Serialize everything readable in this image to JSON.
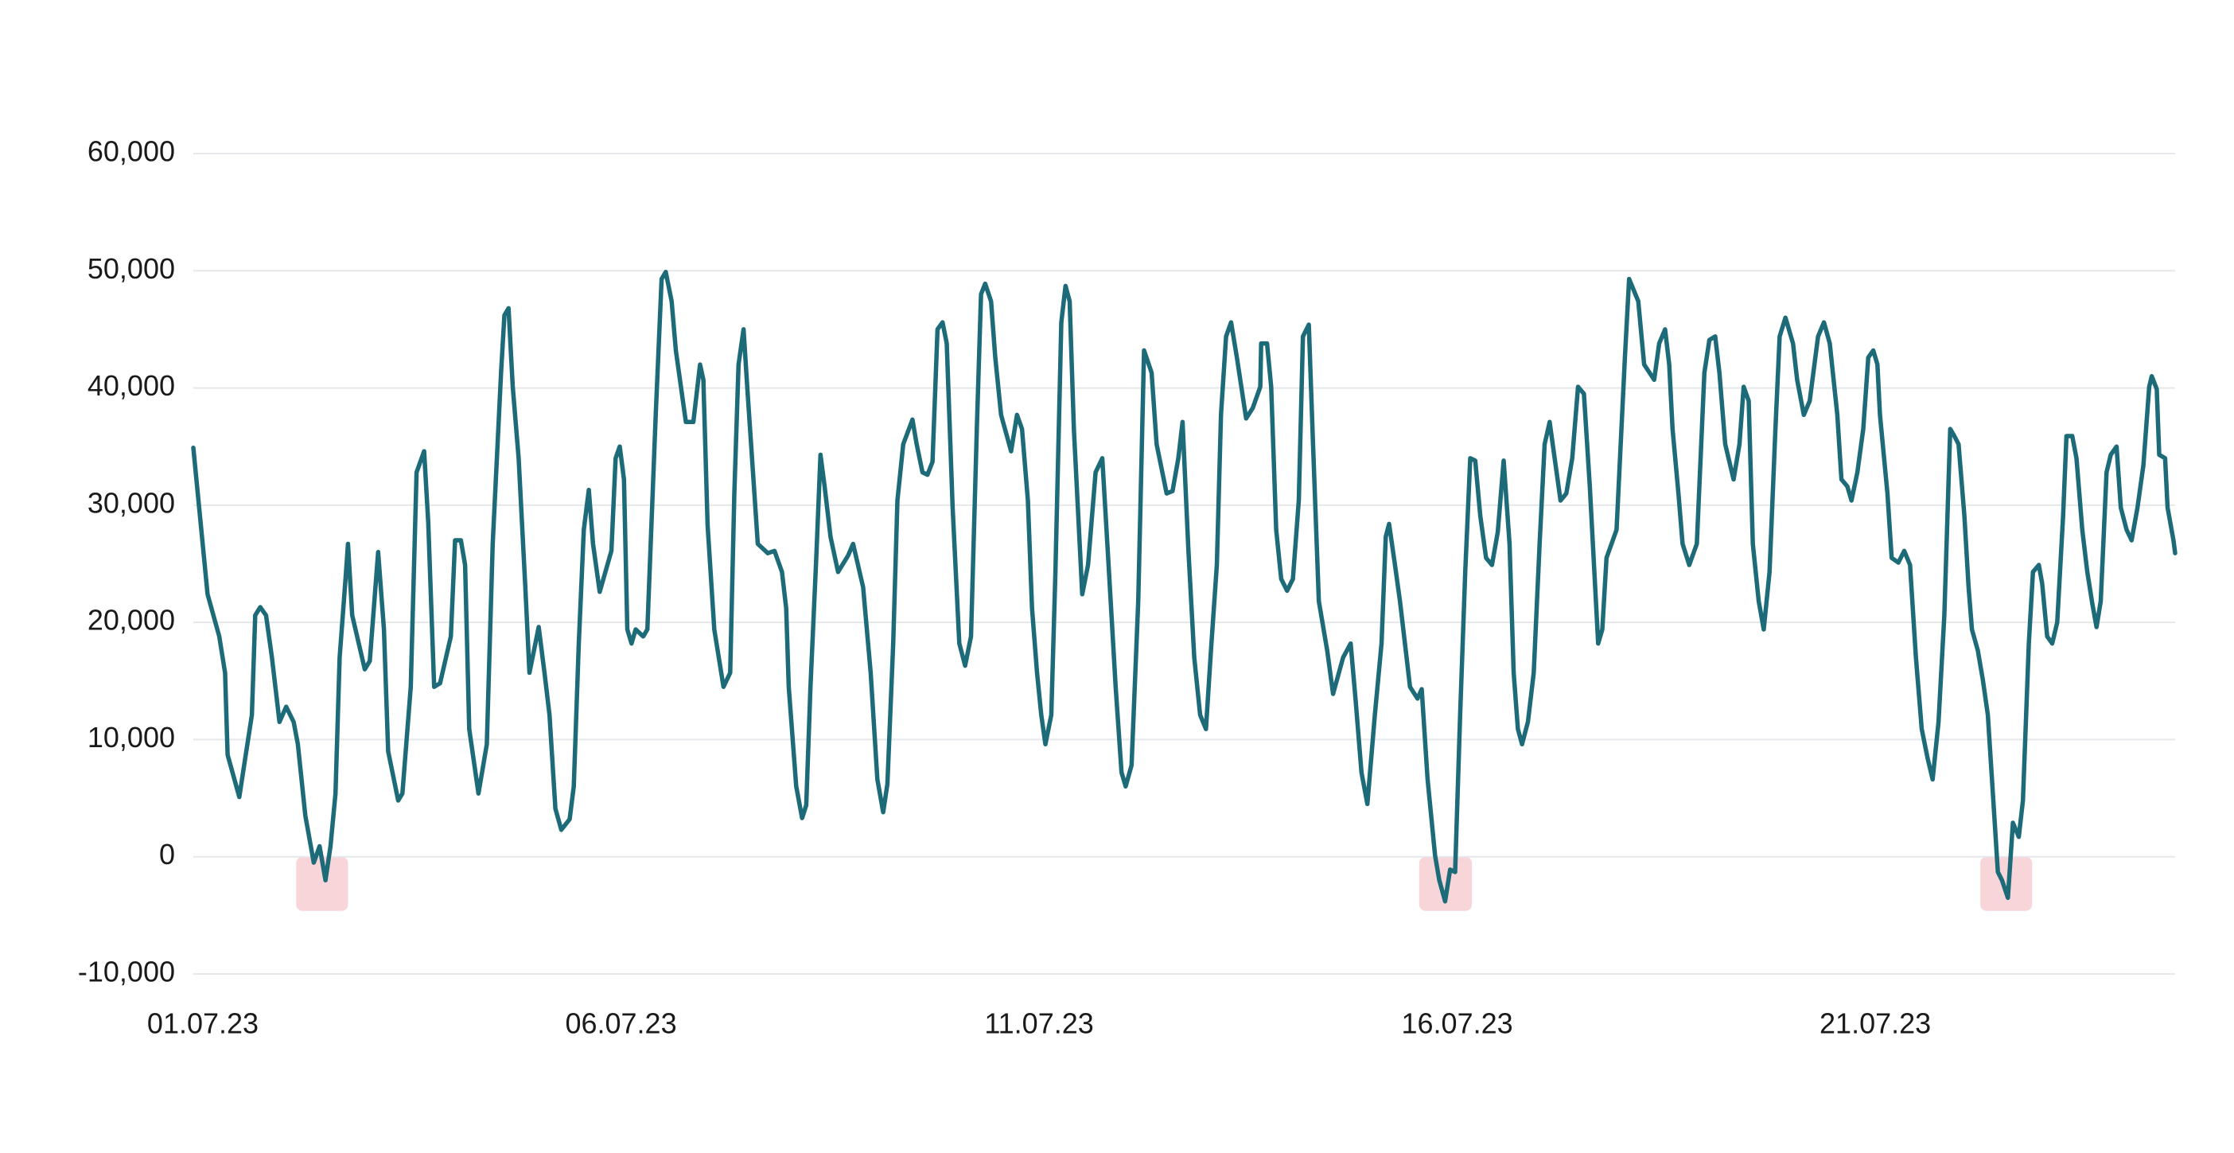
{
  "chart_data": {
    "type": "line",
    "color": "#1d6b78",
    "grid": true,
    "highlight_color": "#f8d5d8",
    "xlim": [
      0,
      23.7
    ],
    "xticks": [
      {
        "value": 0,
        "label": "01.07.23"
      },
      {
        "value": 5,
        "label": "06.07.23"
      },
      {
        "value": 10,
        "label": "11.07.23"
      },
      {
        "value": 15,
        "label": "16.07.23"
      },
      {
        "value": 20,
        "label": "21.07.23"
      }
    ],
    "ylim": [
      -10000,
      60000
    ],
    "yticks": [
      {
        "value": -10000,
        "label": "-10,000"
      },
      0,
      {
        "value": 10000,
        "label": "10,000"
      },
      {
        "value": 20000,
        "label": "20,000"
      },
      {
        "value": 30000,
        "label": "30,000"
      },
      {
        "value": 40000,
        "label": "40,000"
      },
      {
        "value": 50000,
        "label": "50,000"
      },
      {
        "value": 60000,
        "label": "60,000"
      }
    ],
    "highlights": [
      [
        1.23,
        1.85
      ],
      [
        14.66,
        15.29
      ],
      [
        21.37,
        21.99
      ]
    ],
    "x": [
      0,
      0.17,
      0.31,
      0.38,
      0.41,
      0.55,
      0.62,
      0.7,
      0.74,
      0.8,
      0.87,
      0.94,
      1.03,
      1.11,
      1.2,
      1.25,
      1.34,
      1.44,
      1.51,
      1.58,
      1.64,
      1.7,
      1.75,
      1.82,
      1.85,
      1.9,
      2.05,
      2.11,
      2.21,
      2.28,
      2.33,
      2.45,
      2.5,
      2.6,
      2.67,
      2.76,
      2.81,
      2.88,
      2.95,
      3.08,
      3.13,
      3.2,
      3.25,
      3.3,
      3.41,
      3.51,
      3.58,
      3.68,
      3.72,
      3.77,
      3.82,
      3.89,
      3.97,
      4.02,
      4.13,
      4.2,
      4.26,
      4.33,
      4.4,
      4.5,
      4.55,
      4.61,
      4.67,
      4.73,
      4.78,
      4.86,
      5.0,
      5.05,
      5.1,
      5.15,
      5.19,
      5.24,
      5.29,
      5.38,
      5.43,
      5.53,
      5.6,
      5.65,
      5.72,
      5.77,
      5.89,
      5.98,
      6.06,
      6.1,
      6.15,
      6.23,
      6.34,
      6.42,
      6.47,
      6.52,
      6.58,
      6.63,
      6.75,
      6.87,
      6.95,
      7.04,
      7.09,
      7.12,
      7.21,
      7.28,
      7.33,
      7.38,
      7.45,
      7.5,
      7.55,
      7.62,
      7.71,
      7.83,
      7.89,
      8.01,
      8.1,
      8.18,
      8.25,
      8.3,
      8.37,
      8.42,
      8.49,
      8.6,
      8.65,
      8.72,
      8.78,
      8.84,
      8.9,
      8.96,
      9.01,
      9.08,
      9.16,
      9.23,
      9.3,
      9.37,
      9.42,
      9.47,
      9.54,
      9.59,
      9.66,
      9.78,
      9.85,
      9.91,
      9.98,
      10.03,
      10.09,
      10.14,
      10.19,
      10.26,
      10.31,
      10.38,
      10.43,
      10.48,
      10.53,
      10.6,
      10.63,
      10.7,
      10.79,
      10.87,
      10.94,
      11.03,
      11.1,
      11.15,
      11.22,
      11.3,
      11.37,
      11.46,
      11.52,
      11.64,
      11.71,
      11.78,
      11.83,
      11.9,
      11.97,
      12.04,
      12.11,
      12.17,
      12.24,
      12.29,
      12.35,
      12.41,
      12.48,
      12.59,
      12.67,
      12.76,
      12.77,
      12.84,
      12.89,
      12.95,
      13.01,
      13.08,
      13.15,
      13.22,
      13.27,
      13.34,
      13.39,
      13.46,
      13.56,
      13.63,
      13.75,
      13.84,
      13.9,
      13.97,
      14.04,
      14.13,
      14.21,
      14.26,
      14.3,
      14.37,
      14.43,
      14.55,
      14.64,
      14.69,
      14.76,
      14.85,
      14.9,
      14.97,
      15.03,
      15.09,
      15.15,
      15.21,
      15.27,
      15.33,
      15.39,
      15.46,
      15.53,
      15.6,
      15.67,
      15.74,
      15.79,
      15.84,
      15.89,
      15.96,
      16.03,
      16.1,
      16.16,
      16.22,
      16.28,
      16.35,
      16.42,
      16.49,
      16.56,
      16.63,
      16.7,
      16.8,
      16.85,
      16.9,
      17.02,
      17.12,
      17.17,
      17.28,
      17.35,
      17.47,
      17.53,
      17.6,
      17.65,
      17.69,
      17.76,
      17.81,
      17.89,
      17.98,
      18.07,
      18.13,
      18.2,
      18.25,
      18.32,
      18.42,
      18.49,
      18.54,
      18.6,
      18.65,
      18.72,
      18.78,
      18.85,
      18.92,
      18.97,
      19.04,
      19.13,
      19.18,
      19.26,
      19.33,
      19.43,
      19.5,
      19.57,
      19.66,
      19.71,
      19.78,
      19.83,
      19.9,
      19.97,
      20.03,
      20.09,
      20.14,
      20.17,
      20.26,
      20.31,
      20.39,
      20.46,
      20.53,
      20.6,
      20.67,
      20.74,
      20.8,
      20.87,
      20.94,
      21.01,
      21.06,
      21.11,
      21.18,
      21.23,
      21.27,
      21.34,
      21.4,
      21.46,
      21.51,
      21.58,
      21.63,
      21.7,
      21.76,
      21.83,
      21.88,
      21.95,
      22.0,
      22.07,
      22.11,
      22.17,
      22.23,
      22.29,
      22.36,
      22.4,
      22.47,
      22.52,
      22.59,
      22.65,
      22.71,
      22.76,
      22.81,
      22.88,
      22.93,
      23.0,
      23.05,
      23.12,
      23.18,
      23.25,
      23.32,
      23.39,
      23.42,
      23.48,
      23.51,
      23.58,
      23.61,
      23.68,
      23.7
    ],
    "values": [
      34900,
      22400,
      18800,
      15700,
      8700,
      5100,
      8400,
      12100,
      20600,
      21300,
      20600,
      17000,
      11500,
      12800,
      11500,
      9600,
      3500,
      -500,
      900,
      -2000,
      900,
      5400,
      17000,
      23700,
      26700,
      20600,
      16000,
      16700,
      26000,
      19400,
      9000,
      4800,
      5400,
      14500,
      32800,
      34600,
      28500,
      14500,
      14800,
      18800,
      27000,
      27000,
      24900,
      10900,
      5400,
      9600,
      26700,
      41300,
      46200,
      46800,
      40100,
      34000,
      23000,
      15700,
      19600,
      15700,
      12100,
      4100,
      2300,
      3200,
      6000,
      18200,
      27900,
      31300,
      26700,
      22600,
      26100,
      34000,
      35000,
      32200,
      19400,
      18200,
      19400,
      18800,
      19400,
      37700,
      49300,
      49900,
      47400,
      43200,
      37100,
      37100,
      42000,
      40700,
      28300,
      19400,
      14500,
      15700,
      31000,
      42000,
      45000,
      39500,
      26700,
      25900,
      26100,
      24300,
      21200,
      14500,
      6000,
      3300,
      4400,
      14500,
      25500,
      34300,
      31600,
      27300,
      24300,
      25700,
      26700,
      23000,
      15700,
      6600,
      3800,
      6200,
      18200,
      30400,
      35200,
      37300,
      35200,
      32800,
      32600,
      33700,
      45000,
      45600,
      43800,
      29800,
      18200,
      16300,
      18800,
      36500,
      48000,
      48900,
      47400,
      42600,
      37700,
      34600,
      37700,
      36500,
      30400,
      21200,
      15700,
      12100,
      9600,
      12100,
      24300,
      45600,
      48700,
      47400,
      36500,
      26700,
      22400,
      24900,
      32800,
      34000,
      25500,
      14500,
      7200,
      6000,
      7800,
      21800,
      43200,
      41300,
      35200,
      31000,
      31200,
      34000,
      37100,
      26100,
      17000,
      12100,
      10900,
      17600,
      24900,
      37700,
      44400,
      45600,
      42600,
      37400,
      38300,
      40100,
      43800,
      43800,
      40100,
      27900,
      23700,
      22700,
      23700,
      30400,
      44400,
      45400,
      35200,
      21800,
      17600,
      13900,
      17000,
      18200,
      13300,
      7200,
      4500,
      12100,
      18200,
      27300,
      28400,
      24900,
      21800,
      14500,
      13500,
      14300,
      6600,
      100,
      -2000,
      -3800,
      -1100,
      -1300,
      12100,
      24300,
      34000,
      33800,
      29100,
      25500,
      24900,
      27700,
      33800,
      26700,
      15700,
      10900,
      9600,
      11500,
      15700,
      26700,
      35200,
      37100,
      34000,
      30400,
      31000,
      34000,
      40100,
      39500,
      31600,
      18200,
      19400,
      25500,
      27900,
      42600,
      49300,
      47400,
      42000,
      40700,
      43800,
      45000,
      42000,
      36500,
      31000,
      26700,
      24900,
      26700,
      41300,
      44100,
      44400,
      41300,
      35200,
      32200,
      35200,
      40100,
      38900,
      26700,
      21800,
      19400,
      24300,
      36500,
      44400,
      46000,
      43800,
      40700,
      37700,
      38900,
      44400,
      45600,
      43800,
      37700,
      32200,
      31600,
      30400,
      32800,
      36500,
      42600,
      43200,
      42000,
      37700,
      31000,
      25500,
      25100,
      26100,
      24900,
      17000,
      10900,
      8400,
      6600,
      11500,
      20600,
      36500,
      35900,
      35200,
      29100,
      23000,
      19400,
      17600,
      15100,
      12100,
      6600,
      -1300,
      -2000,
      -3500,
      2900,
      1700,
      4800,
      18200,
      24300,
      24900,
      23300,
      18800,
      18200,
      20000,
      29100,
      35900,
      35900,
      34000,
      27900,
      24300,
      21600,
      19600,
      21800,
      32800,
      34300,
      35000,
      29800,
      27900,
      27000,
      29800,
      33400,
      40100,
      41000,
      39900,
      34300,
      34000,
      29800,
      27000,
      25900
    ]
  }
}
